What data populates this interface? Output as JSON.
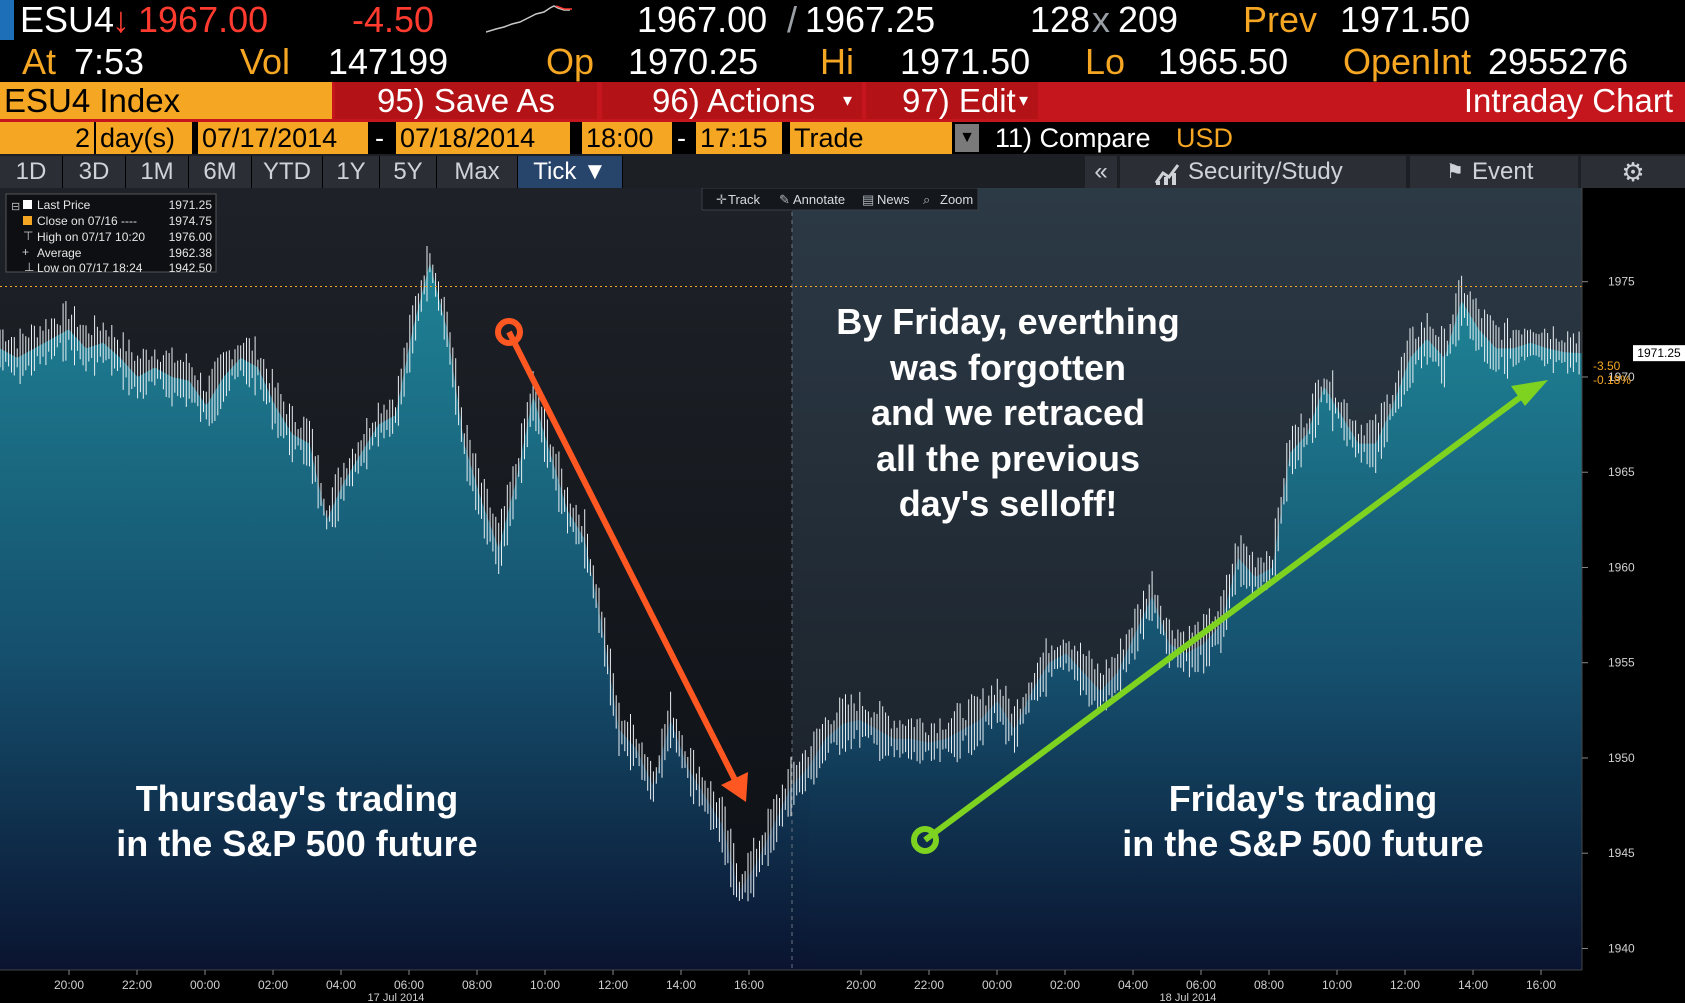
{
  "quote": {
    "ticker": "ESU4",
    "arrow": "↓",
    "last": "1967.00",
    "change": "-4.50",
    "bid_ask_left": "1967.00",
    "bid_ask_sep": "/",
    "bid_ask_right": "1967.25",
    "size_left": "128",
    "size_x": "x",
    "size_right": "209",
    "prev_label": "Prev",
    "prev_value": "1971.50",
    "at_label": "At",
    "at_time": "7:53",
    "vol_label": "Vol",
    "vol_value": "147199",
    "op_label": "Op",
    "op_value": "1970.25",
    "hi_label": "Hi",
    "hi_value": "1971.50",
    "lo_label": "Lo",
    "lo_value": "1965.50",
    "oi_label": "OpenInt",
    "oi_value": "2955276"
  },
  "menu": {
    "security": "ESU4 Index",
    "save_as": "95) Save As",
    "actions": "96) Actions",
    "edit": "97) Edit",
    "title": "Intraday Chart"
  },
  "daterow": {
    "days_value": "2",
    "days_label": "day(s)",
    "start_date": "07/17/2014",
    "dash1": "-",
    "end_date": "07/18/2014",
    "start_time": "18:00",
    "dash2": "-",
    "end_time": "17:15",
    "mode": "Trade",
    "compare": "11) Compare",
    "currency": "USD"
  },
  "ranges": [
    "1D",
    "3D",
    "1M",
    "6M",
    "YTD",
    "1Y",
    "5Y",
    "Max",
    "Tick ▼"
  ],
  "toolbar_right": {
    "collapse": "«",
    "security_study": "Security/Study",
    "event": "Event",
    "settings_icon": "gear-icon"
  },
  "chart_tools": [
    "Track",
    "Annotate",
    "News",
    "Zoom"
  ],
  "legend": [
    {
      "label": "Last Price",
      "value": "1971.25"
    },
    {
      "label": "Close on 07/16 ----",
      "value": "1974.75"
    },
    {
      "label": "High on 07/17 10:20",
      "value": "1976.00"
    },
    {
      "label": "Average",
      "value": "1962.38"
    },
    {
      "label": "Low on 07/17 18:24",
      "value": "1942.50"
    }
  ],
  "annotations": {
    "thursday": [
      "Thursday's trading",
      "in the S&P 500 future"
    ],
    "friday": [
      "Friday's trading",
      "in the S&P 500 future"
    ],
    "middle": [
      "By Friday, everthing",
      "was forgotten",
      "and we retraced",
      "all the previous",
      "day's selloff!"
    ]
  },
  "colors": {
    "orange": "#f5a623",
    "red_menu": "#c4161c",
    "area_top": "#1d7f93",
    "area_bottom": "#0a1632",
    "down_arrow": "#ff5722",
    "up_arrow": "#7ed321"
  },
  "chart_data": {
    "type": "area",
    "ylim": [
      1939.5,
      1979.5
    ],
    "yticks": [
      1940,
      1945,
      1950,
      1955,
      1960,
      1965,
      1970,
      1975
    ],
    "xticks_day1": [
      "20:00",
      "22:00",
      "00:00",
      "02:00",
      "04:00",
      "06:00",
      "08:00",
      "10:00",
      "12:00",
      "14:00",
      "16:00"
    ],
    "xticks_day2": [
      "20:00",
      "22:00",
      "00:00",
      "02:00",
      "04:00",
      "06:00",
      "08:00",
      "10:00",
      "12:00",
      "14:00",
      "16:00"
    ],
    "date_day1": "17 Jul 2014",
    "date_day2": "18 Jul 2014",
    "reference_line": 1974.75,
    "last_price_label": "1971.25",
    "change_label": "-3.50",
    "change_pct_label": "-0.18%",
    "session1_x": [
      0,
      1,
      2,
      3,
      4,
      5,
      6,
      7,
      8,
      9,
      10,
      11,
      12,
      13,
      14,
      15,
      16,
      17,
      18,
      19,
      20,
      21,
      22,
      23,
      24,
      25,
      26,
      27,
      28,
      29,
      30,
      31,
      32,
      33,
      34,
      35,
      36,
      37,
      38,
      39,
      40,
      41,
      42,
      43,
      44,
      45,
      46
    ],
    "session1_y": [
      1971.5,
      1971.0,
      1971.5,
      1972.0,
      1972.5,
      1971.5,
      1971.8,
      1971.0,
      1970.0,
      1970.5,
      1970.0,
      1969.8,
      1968.5,
      1970.0,
      1971.0,
      1970.5,
      1968.5,
      1967.0,
      1966.5,
      1962.5,
      1964.5,
      1966.0,
      1967.5,
      1968.0,
      1972.5,
      1976.0,
      1972.5,
      1966.5,
      1963.5,
      1961.0,
      1964.5,
      1969.0,
      1966.0,
      1963.0,
      1961.5,
      1957.0,
      1951.5,
      1950.5,
      1948.5,
      1952.0,
      1949.5,
      1948.0,
      1946.5,
      1943.0,
      1944.5,
      1946.5,
      1948.5
    ],
    "session2_x": [
      47,
      48,
      49,
      50,
      51,
      52,
      53,
      54,
      55,
      56,
      57,
      58,
      59,
      60,
      61,
      62,
      63,
      64,
      65,
      66,
      67,
      68,
      69,
      70,
      71,
      72,
      73,
      74,
      75,
      76,
      77,
      78,
      79,
      80,
      81,
      82,
      83,
      84,
      85,
      86,
      87,
      88,
      89,
      90,
      91,
      92
    ],
    "session2_y": [
      1949.5,
      1951.0,
      1951.8,
      1952.0,
      1951.5,
      1951.0,
      1951.0,
      1950.8,
      1951.0,
      1951.5,
      1952.0,
      1953.0,
      1951.5,
      1953.5,
      1955.0,
      1955.5,
      1954.5,
      1953.5,
      1954.5,
      1956.5,
      1958.5,
      1956.0,
      1955.5,
      1956.0,
      1957.0,
      1960.5,
      1959.5,
      1960.0,
      1966.0,
      1967.0,
      1969.5,
      1968.0,
      1966.5,
      1966.5,
      1968.5,
      1971.0,
      1972.0,
      1971.0,
      1974.0,
      1972.5,
      1971.5,
      1971.5,
      1971.8,
      1971.5,
      1971.3,
      1971.25
    ]
  }
}
